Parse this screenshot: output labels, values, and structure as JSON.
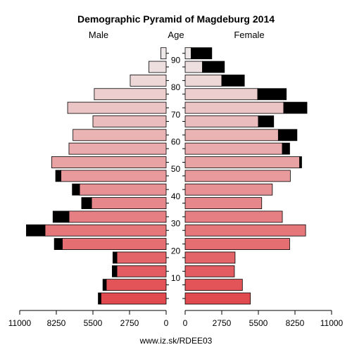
{
  "chart_data": {
    "type": "bar",
    "title": "Demographic Pyramid of Magdeburg 2014",
    "left_label": "Male",
    "center_label": "Age",
    "right_label": "Female",
    "source": "www.iz.sk/RDEE03",
    "xlim": [
      0,
      11000
    ],
    "x_ticks_left": [
      "11000",
      "8250",
      "5500",
      "2750",
      "0"
    ],
    "x_ticks_right": [
      "0",
      "2750",
      "5500",
      "8250",
      "11000"
    ],
    "age_ticks": [
      "10",
      "20",
      "30",
      "40",
      "50",
      "60",
      "70",
      "80",
      "90"
    ],
    "age_groups": [
      "0-4",
      "5-9",
      "10-14",
      "15-19",
      "20-24",
      "25-29",
      "30-34",
      "35-39",
      "40-44",
      "45-49",
      "50-54",
      "55-59",
      "60-64",
      "65-69",
      "70-74",
      "75-79",
      "80-84",
      "85-89",
      "90+"
    ],
    "series": [
      {
        "name": "Male",
        "values": [
          4900,
          4500,
          3700,
          3700,
          7800,
          9100,
          7300,
          5600,
          6500,
          7900,
          8600,
          7300,
          7000,
          5500,
          7400,
          5400,
          2700,
          1300,
          400
        ]
      },
      {
        "name": "Male excess",
        "values": [
          200,
          250,
          350,
          300,
          600,
          1400,
          1200,
          750,
          550,
          400,
          0,
          0,
          0,
          0,
          0,
          0,
          0,
          0,
          0
        ]
      },
      {
        "name": "Female",
        "values": [
          4900,
          4300,
          3700,
          3750,
          7850,
          9050,
          7300,
          5750,
          6550,
          7900,
          8600,
          7300,
          7000,
          5500,
          7400,
          5450,
          2750,
          1300,
          450
        ]
      },
      {
        "name": "Female excess",
        "values": [
          0,
          0,
          0,
          0,
          0,
          0,
          0,
          0,
          0,
          0,
          150,
          550,
          1400,
          1150,
          1750,
          2150,
          1700,
          1650,
          1550
        ]
      }
    ]
  }
}
